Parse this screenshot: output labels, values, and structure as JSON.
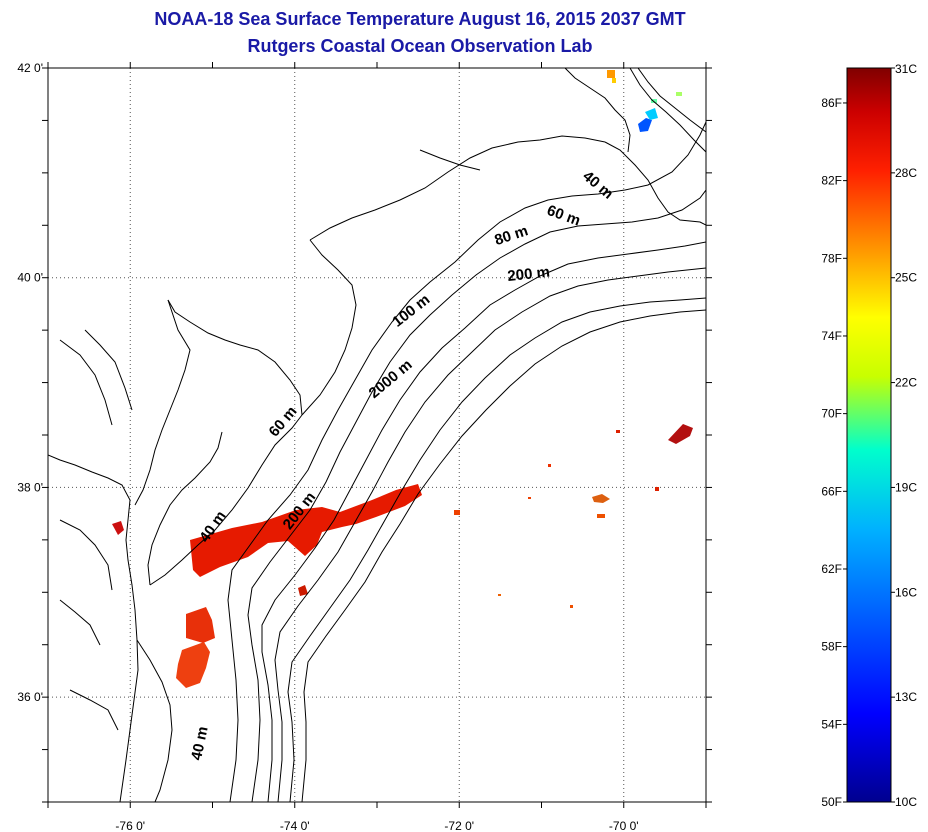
{
  "header": {
    "title_line1": "NOAA-18 Sea Surface Temperature August 16, 2015 2037 GMT",
    "title_line2": "Rutgers Coastal Ocean Observation Lab"
  },
  "map": {
    "lon_range": [
      -77,
      -69
    ],
    "lat_range": [
      35,
      42
    ],
    "lon_ticks": [
      {
        "value": -76,
        "label": "-76 0'"
      },
      {
        "value": -74,
        "label": "-74 0'"
      },
      {
        "value": -72,
        "label": "-72 0'"
      },
      {
        "value": -70,
        "label": "-70 0'"
      }
    ],
    "lat_ticks": [
      {
        "value": 36,
        "label": "36 0'"
      },
      {
        "value": 38,
        "label": "38 0'"
      },
      {
        "value": 40,
        "label": "40 0'"
      },
      {
        "value": 42,
        "label": "42 0'"
      }
    ],
    "gridlines": "dotted",
    "contour_labels": [
      {
        "text": "40 m",
        "lon": -70.35,
        "lat": 40.85,
        "rotation": 40
      },
      {
        "text": "60 m",
        "lon": -70.75,
        "lat": 40.55,
        "rotation": 20
      },
      {
        "text": "80 m",
        "lon": -71.35,
        "lat": 40.36,
        "rotation": -18
      },
      {
        "text": "200 m",
        "lon": -71.15,
        "lat": 39.99,
        "rotation": -6
      },
      {
        "text": "100 m",
        "lon": -72.55,
        "lat": 39.65,
        "rotation": -38
      },
      {
        "text": "2000 m",
        "lon": -72.8,
        "lat": 39.0,
        "rotation": -40
      },
      {
        "text": "60 m",
        "lon": -74.1,
        "lat": 38.6,
        "rotation": -50
      },
      {
        "text": "200 m",
        "lon": -73.9,
        "lat": 37.75,
        "rotation": -52
      },
      {
        "text": "40 m",
        "lon": -74.95,
        "lat": 37.6,
        "rotation": -55
      },
      {
        "text": "40 m",
        "lon": -75.1,
        "lat": 35.55,
        "rotation": -78
      }
    ]
  },
  "colorbar": {
    "celsius_min": 10,
    "celsius_max": 31,
    "celsius_labels": [
      {
        "value": 31,
        "label": "31C"
      },
      {
        "value": 28,
        "label": "28C"
      },
      {
        "value": 25,
        "label": "25C"
      },
      {
        "value": 22,
        "label": "22C"
      },
      {
        "value": 19,
        "label": "19C"
      },
      {
        "value": 16,
        "label": "16C"
      },
      {
        "value": 13,
        "label": "13C"
      },
      {
        "value": 10,
        "label": "10C"
      }
    ],
    "fahrenheit_labels": [
      {
        "value": 86,
        "label": "86F"
      },
      {
        "value": 82,
        "label": "82F"
      },
      {
        "value": 78,
        "label": "78F"
      },
      {
        "value": 74,
        "label": "74F"
      },
      {
        "value": 70,
        "label": "70F"
      },
      {
        "value": 66,
        "label": "66F"
      },
      {
        "value": 62,
        "label": "62F"
      },
      {
        "value": 58,
        "label": "58F"
      },
      {
        "value": 54,
        "label": "54F"
      },
      {
        "value": 50,
        "label": "50F"
      }
    ],
    "colors": [
      "#00008f",
      "#0000ff",
      "#00ffff",
      "#ffff00",
      "#ff8000",
      "#ff0000",
      "#800000"
    ]
  }
}
